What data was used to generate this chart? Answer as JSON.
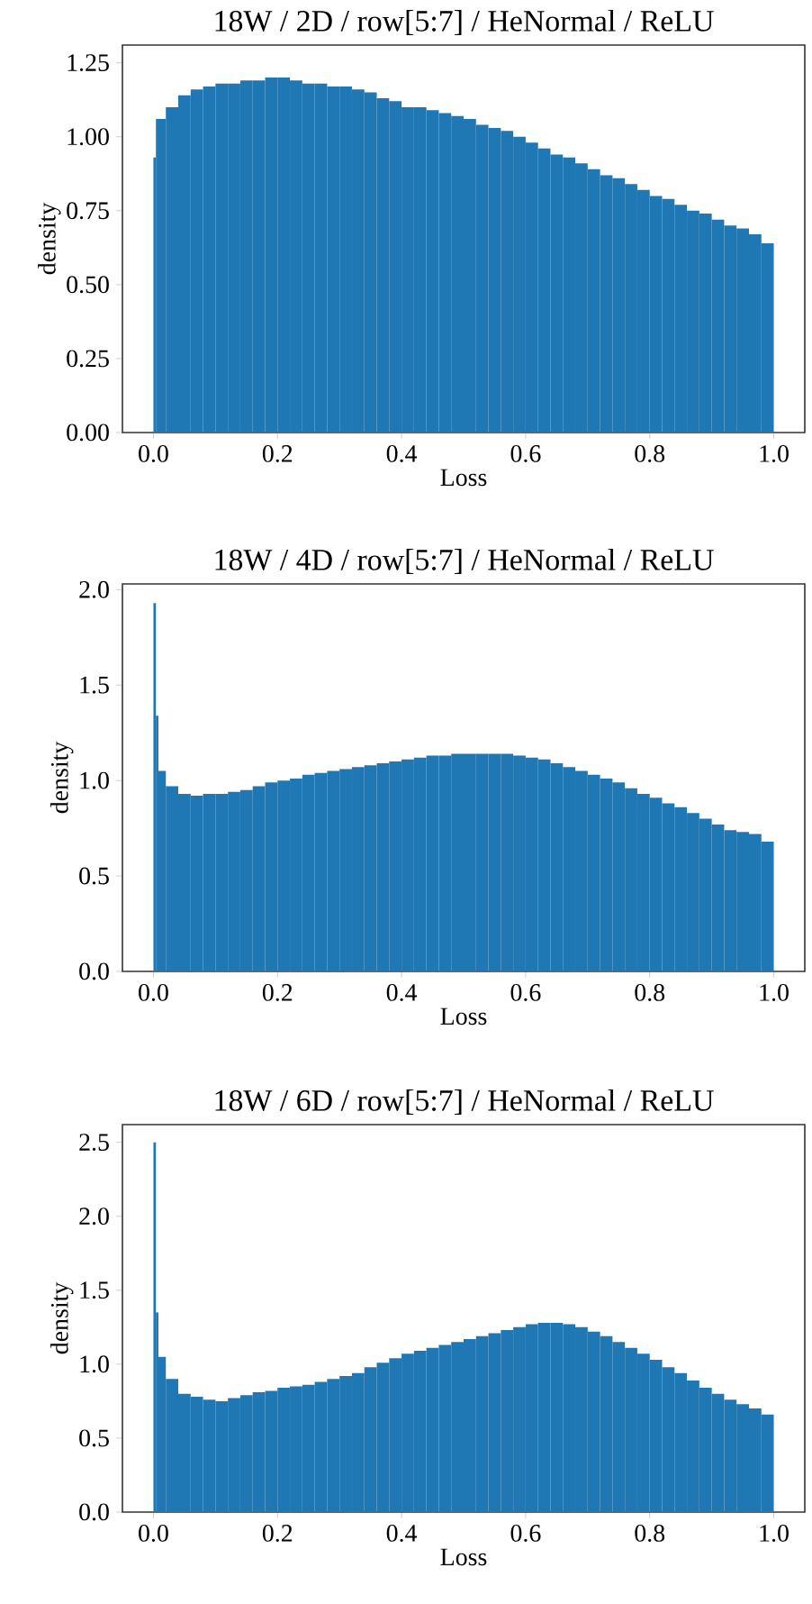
{
  "chart_data": [
    {
      "type": "histogram",
      "title": "18W / 2D / row[5:7] / HeNormal / ReLU",
      "xlabel": "Loss",
      "ylabel": "density",
      "color": "#1f77b4",
      "bins": [
        0,
        0.004,
        0.008,
        0.02,
        0.04,
        0.06,
        0.08,
        0.1,
        0.12,
        0.14,
        0.16,
        0.18,
        0.2,
        0.22,
        0.24,
        0.26,
        0.28,
        0.3,
        0.32,
        0.34,
        0.36,
        0.38,
        0.4,
        0.42,
        0.44,
        0.46,
        0.48,
        0.5,
        0.52,
        0.54,
        0.56,
        0.58,
        0.6,
        0.62,
        0.64,
        0.66,
        0.68,
        0.7,
        0.72,
        0.74,
        0.76,
        0.78,
        0.8,
        0.82,
        0.84,
        0.86,
        0.88,
        0.9,
        0.92,
        0.94,
        0.96,
        0.98,
        1.0
      ],
      "values": [
        0.93,
        1.06,
        1.06,
        1.1,
        1.14,
        1.16,
        1.17,
        1.18,
        1.18,
        1.19,
        1.19,
        1.2,
        1.2,
        1.19,
        1.18,
        1.18,
        1.17,
        1.17,
        1.16,
        1.15,
        1.13,
        1.12,
        1.1,
        1.1,
        1.09,
        1.08,
        1.07,
        1.06,
        1.04,
        1.03,
        1.02,
        1.0,
        0.98,
        0.96,
        0.94,
        0.93,
        0.91,
        0.89,
        0.87,
        0.86,
        0.84,
        0.82,
        0.8,
        0.79,
        0.77,
        0.75,
        0.74,
        0.72,
        0.7,
        0.69,
        0.67,
        0.64
      ],
      "xlim": [
        -0.05,
        1.05
      ],
      "ylim": [
        0,
        1.31
      ],
      "xticks": [
        {
          "value": 0,
          "label": "0.0"
        },
        {
          "value": 0.2,
          "label": "0.2"
        },
        {
          "value": 0.4,
          "label": "0.4"
        },
        {
          "value": 0.6,
          "label": "0.6"
        },
        {
          "value": 0.8,
          "label": "0.8"
        },
        {
          "value": 1,
          "label": "1.0"
        }
      ],
      "yticks": [
        {
          "value": 0,
          "label": "0.00"
        },
        {
          "value": 0.25,
          "label": "0.25"
        },
        {
          "value": 0.5,
          "label": "0.50"
        },
        {
          "value": 0.75,
          "label": "0.75"
        },
        {
          "value": 1,
          "label": "1.00"
        },
        {
          "value": 1.25,
          "label": "1.25"
        }
      ]
    },
    {
      "type": "histogram",
      "title": "18W / 4D / row[5:7] / HeNormal / ReLU",
      "xlabel": "Loss",
      "ylabel": "density",
      "color": "#1f77b4",
      "bins": [
        0,
        0.004,
        0.008,
        0.02,
        0.04,
        0.06,
        0.08,
        0.1,
        0.12,
        0.14,
        0.16,
        0.18,
        0.2,
        0.22,
        0.24,
        0.26,
        0.28,
        0.3,
        0.32,
        0.34,
        0.36,
        0.38,
        0.4,
        0.42,
        0.44,
        0.46,
        0.48,
        0.5,
        0.52,
        0.54,
        0.56,
        0.58,
        0.6,
        0.62,
        0.64,
        0.66,
        0.68,
        0.7,
        0.72,
        0.74,
        0.76,
        0.78,
        0.8,
        0.82,
        0.84,
        0.86,
        0.88,
        0.9,
        0.92,
        0.94,
        0.96,
        0.98,
        1.0
      ],
      "values": [
        1.93,
        1.34,
        1.05,
        0.97,
        0.93,
        0.92,
        0.93,
        0.93,
        0.94,
        0.95,
        0.97,
        0.99,
        1.0,
        1.01,
        1.03,
        1.04,
        1.05,
        1.06,
        1.07,
        1.08,
        1.09,
        1.1,
        1.11,
        1.12,
        1.13,
        1.13,
        1.14,
        1.14,
        1.14,
        1.14,
        1.14,
        1.13,
        1.12,
        1.11,
        1.09,
        1.07,
        1.05,
        1.03,
        1.01,
        0.99,
        0.96,
        0.93,
        0.91,
        0.88,
        0.86,
        0.83,
        0.8,
        0.77,
        0.74,
        0.73,
        0.72,
        0.68
      ],
      "xlim": [
        -0.05,
        1.05
      ],
      "ylim": [
        0,
        2.03
      ],
      "xticks": [
        {
          "value": 0,
          "label": "0.0"
        },
        {
          "value": 0.2,
          "label": "0.2"
        },
        {
          "value": 0.4,
          "label": "0.4"
        },
        {
          "value": 0.6,
          "label": "0.6"
        },
        {
          "value": 0.8,
          "label": "0.8"
        },
        {
          "value": 1,
          "label": "1.0"
        }
      ],
      "yticks": [
        {
          "value": 0,
          "label": "0.0"
        },
        {
          "value": 0.5,
          "label": "0.5"
        },
        {
          "value": 1,
          "label": "1.0"
        },
        {
          "value": 1.5,
          "label": "1.5"
        },
        {
          "value": 2,
          "label": "2.0"
        }
      ]
    },
    {
      "type": "histogram",
      "title": "18W / 6D / row[5:7] / HeNormal / ReLU",
      "xlabel": "Loss",
      "ylabel": "density",
      "color": "#1f77b4",
      "bins": [
        0,
        0.004,
        0.008,
        0.02,
        0.04,
        0.06,
        0.08,
        0.1,
        0.12,
        0.14,
        0.16,
        0.18,
        0.2,
        0.22,
        0.24,
        0.26,
        0.28,
        0.3,
        0.32,
        0.34,
        0.36,
        0.38,
        0.4,
        0.42,
        0.44,
        0.46,
        0.48,
        0.5,
        0.52,
        0.54,
        0.56,
        0.58,
        0.6,
        0.62,
        0.64,
        0.66,
        0.68,
        0.7,
        0.72,
        0.74,
        0.76,
        0.78,
        0.8,
        0.82,
        0.84,
        0.86,
        0.88,
        0.9,
        0.92,
        0.94,
        0.96,
        0.98,
        1.0
      ],
      "values": [
        2.5,
        1.35,
        1.05,
        0.9,
        0.8,
        0.78,
        0.76,
        0.75,
        0.77,
        0.79,
        0.81,
        0.82,
        0.84,
        0.85,
        0.86,
        0.88,
        0.9,
        0.92,
        0.94,
        0.98,
        1.01,
        1.04,
        1.07,
        1.09,
        1.11,
        1.13,
        1.15,
        1.17,
        1.19,
        1.21,
        1.23,
        1.25,
        1.27,
        1.28,
        1.28,
        1.27,
        1.25,
        1.22,
        1.19,
        1.15,
        1.11,
        1.07,
        1.03,
        0.98,
        0.94,
        0.89,
        0.84,
        0.8,
        0.76,
        0.73,
        0.7,
        0.66
      ],
      "xlim": [
        -0.05,
        1.05
      ],
      "ylim": [
        0,
        2.62
      ],
      "xticks": [
        {
          "value": 0,
          "label": "0.0"
        },
        {
          "value": 0.2,
          "label": "0.2"
        },
        {
          "value": 0.4,
          "label": "0.4"
        },
        {
          "value": 0.6,
          "label": "0.6"
        },
        {
          "value": 0.8,
          "label": "0.8"
        },
        {
          "value": 1,
          "label": "1.0"
        }
      ],
      "yticks": [
        {
          "value": 0,
          "label": "0.0"
        },
        {
          "value": 0.5,
          "label": "0.5"
        },
        {
          "value": 1,
          "label": "1.0"
        },
        {
          "value": 1.5,
          "label": "1.5"
        },
        {
          "value": 2,
          "label": "2.0"
        },
        {
          "value": 2.5,
          "label": "2.5"
        }
      ]
    }
  ]
}
